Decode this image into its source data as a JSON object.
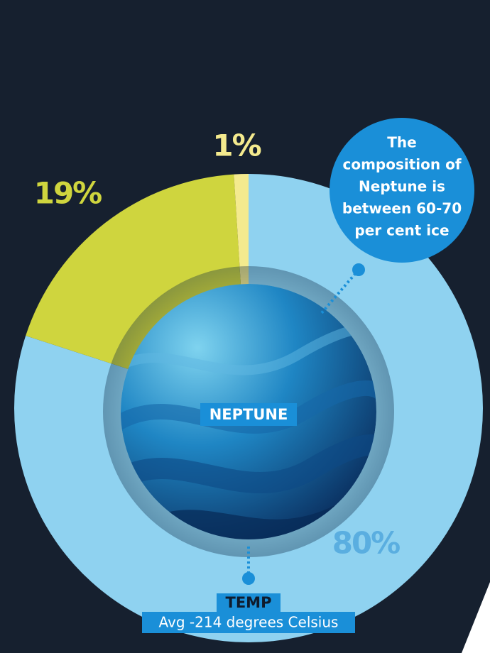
{
  "chart_data": {
    "type": "donut",
    "categories": [
      null,
      null,
      null
    ],
    "values": [
      80,
      19,
      1
    ],
    "value_labels": [
      "80%",
      "19%",
      "1%"
    ],
    "colors": [
      "#8fd2f0",
      "#cfd53e",
      "#f4ea8e"
    ],
    "center_label": "NEPTUNE",
    "callout": [
      "The",
      "composition of",
      "Neptune is",
      "between 60-70",
      "per cent ice"
    ],
    "temp_title": "TEMP",
    "temp_text": "Avg -214 degrees Celsius"
  }
}
